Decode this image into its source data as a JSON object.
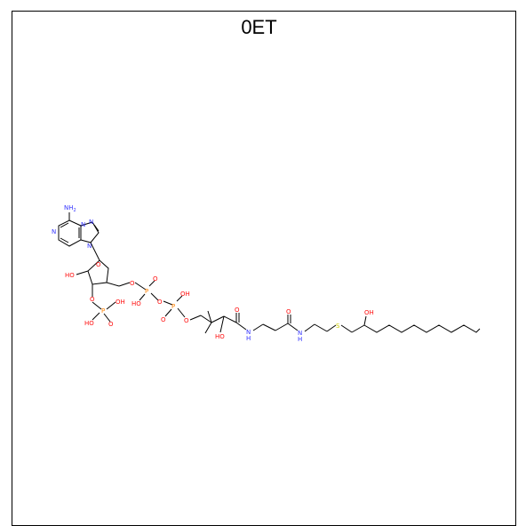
{
  "title": "0ET",
  "labels": {
    "nh2": "NH",
    "nh2_sub": "2",
    "n1": "N",
    "n3": "N",
    "n7": "N",
    "n9": "N",
    "ring_o": "O",
    "oh_2p": "HO",
    "o_3p": "O",
    "p3": "P",
    "p3_oh": "OH",
    "p3_ho": "HO",
    "p3_o": "O",
    "o5p": "O",
    "p_a": "P",
    "p_a_o": "O",
    "p_a_ho": "HO",
    "o_bridge": "O",
    "p_b": "P",
    "p_b_oh": "OH",
    "p_b_o": "O",
    "o_pan": "O",
    "oh_pan": "HO",
    "amide1_o": "O",
    "amide1_nh": "N",
    "amide1_h": "H",
    "amide2_o": "O",
    "amide2_nh": "N",
    "amide2_h": "H",
    "s": "S",
    "oh_tail": "OH"
  },
  "colors": {
    "bond": "#000000",
    "nitrogen": "#3333ff",
    "oxygen": "#ff0d0d",
    "phosphorus": "#ff8000",
    "sulfur": "#cccc00"
  }
}
